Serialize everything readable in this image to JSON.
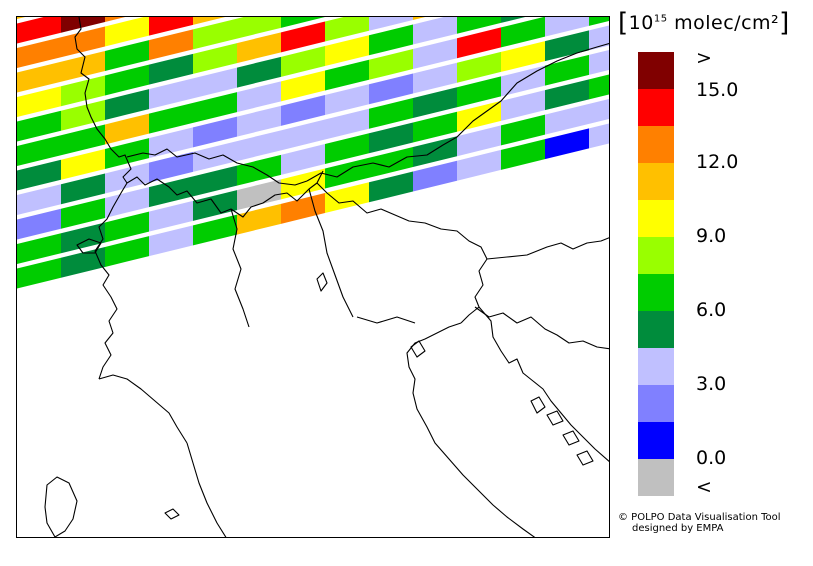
{
  "legend": {
    "bracket_open": "[",
    "bracket_close": "]",
    "unit_base": "10",
    "unit_exp": "15",
    "unit_label": "molec/cm²",
    "top_symbol": ">",
    "bottom_symbol": "<",
    "ticks": [
      "15.0",
      "12.0",
      "9.0",
      "6.0",
      "3.0",
      "0.0"
    ],
    "colors": [
      "#800000",
      "#ff0000",
      "#ff8000",
      "#ffc000",
      "#ffff00",
      "#99ff00",
      "#00cc00",
      "#008c3c",
      "#c0c0ff",
      "#8080ff",
      "#0000ff",
      "#c0c0c0"
    ]
  },
  "credit": {
    "line1": "© POLPO Data Visualisation Tool",
    "line2": "designed by EMPA"
  },
  "map": {
    "swath_rows": [
      [
        "#ffc000",
        "#800000",
        "#ffff00",
        "#800000",
        "#99ff00",
        "#99ff00",
        "#ff8000",
        "#ffc000",
        "#00cc00",
        "#00cc00",
        "#99ff00",
        "#c0c0ff",
        "#c0c0ff",
        "#8080ff"
      ],
      [
        "#ff0000",
        "#800000",
        "#ff8000",
        "#ff0000",
        "#800000",
        "#ffc000",
        "#99ff00",
        "#00cc00",
        "#008c3c",
        "#c0c0ff",
        "#c0c0ff",
        "#c0c0ff",
        "#8080ff",
        "#c0c0ff"
      ],
      [
        "#ff8000",
        "#ff8000",
        "#ffff00",
        "#ff0000",
        "#ffc000",
        "#99ff00",
        "#008c3c",
        "#99ff00",
        "#c0c0ff",
        "#c0c0ff",
        "#00cc00",
        "#008c3c",
        "#c0c0ff",
        "#00cc00"
      ],
      [
        "#ffc000",
        "#ffc000",
        "#00cc00",
        "#ff8000",
        "#99ff00",
        "#99ff00",
        "#00cc00",
        "#99ff00",
        "#c0c0ff",
        "#c0c0ff",
        "#008c3c",
        "#c0c0ff",
        "#008c3c",
        "#00cc00"
      ],
      [
        "#ffff00",
        "#99ff00",
        "#00cc00",
        "#008c3c",
        "#99ff00",
        "#ffc000",
        "#ff0000",
        "#99ff00",
        "#c0c0ff",
        "#ffc000",
        "#c0c0ff",
        "#99ff00",
        "#c0c0ff",
        "#00cc00"
      ],
      [
        "#00cc00",
        "#99ff00",
        "#008c3c",
        "#c0c0ff",
        "#c0c0ff",
        "#008c3c",
        "#99ff00",
        "#ffff00",
        "#00cc00",
        "#c0c0ff",
        "#00cc00",
        "#008c3c",
        "#c0c0ff",
        "#ff8000"
      ],
      [
        "#00cc00",
        "#00cc00",
        "#ffc000",
        "#00cc00",
        "#00cc00",
        "#c0c0ff",
        "#ffff00",
        "#00cc00",
        "#99ff00",
        "#c0c0ff",
        "#ff0000",
        "#00cc00",
        "#c0c0ff",
        "#00cc00"
      ],
      [
        "#008c3c",
        "#ffff00",
        "#00cc00",
        "#c0c0ff",
        "#8080ff",
        "#c0c0ff",
        "#8080ff",
        "#c0c0ff",
        "#8080ff",
        "#c0c0ff",
        "#99ff00",
        "#ffff00",
        "#008c3c",
        "#c0c0ff"
      ],
      [
        "#c0c0ff",
        "#008c3c",
        "#c0c0ff",
        "#8080ff",
        "#c0c0ff",
        "#c0c0ff",
        "#c0c0ff",
        "#c0c0ff",
        "#00cc00",
        "#008c3c",
        "#00cc00",
        "#c0c0ff",
        "#00cc00",
        "#c0c0ff"
      ],
      [
        "#8080ff",
        "#00cc00",
        "#c0c0ff",
        "#008c3c",
        "#008c3c",
        "#00cc00",
        "#c0c0ff",
        "#00cc00",
        "#008c3c",
        "#00cc00",
        "#ffff00",
        "#c0c0ff",
        "#008c3c",
        "#00cc00"
      ],
      [
        "#00cc00",
        "#008c3c",
        "#00cc00",
        "#c0c0ff",
        "#008c3c",
        "#c0c0c0",
        "#ffff00",
        "#00cc00",
        "#00cc00",
        "#008c3c",
        "#c0c0ff",
        "#00cc00",
        "#c0c0ff",
        "#c0c0ff"
      ],
      [
        "#00cc00",
        "#008c3c",
        "#00cc00",
        "#c0c0ff",
        "#00cc00",
        "#ffc000",
        "#ff8000",
        "#ffff00",
        "#008c3c",
        "#8080ff",
        "#c0c0ff",
        "#00cc00",
        "#0000ff",
        "#c0c0ff"
      ]
    ]
  }
}
